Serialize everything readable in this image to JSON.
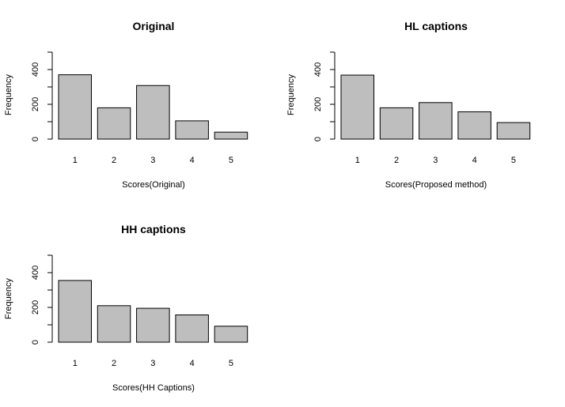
{
  "chart_data": [
    {
      "type": "bar",
      "title": "Original",
      "xlabel": "Scores(Original)",
      "ylabel": "Frequency",
      "categories": [
        "1",
        "2",
        "3",
        "4",
        "5"
      ],
      "values": [
        370,
        180,
        308,
        105,
        40
      ],
      "ylim": [
        0,
        500
      ],
      "yticks": [
        0,
        200,
        400
      ],
      "grid": false,
      "bar_color": "#bebebe"
    },
    {
      "type": "bar",
      "title": "HL captions",
      "xlabel": "Scores(Proposed method)",
      "ylabel": "Frequency",
      "categories": [
        "1",
        "2",
        "3",
        "4",
        "5"
      ],
      "values": [
        368,
        180,
        210,
        157,
        95
      ],
      "ylim": [
        0,
        500
      ],
      "yticks": [
        0,
        200,
        400
      ],
      "grid": false,
      "bar_color": "#bebebe"
    },
    {
      "type": "bar",
      "title": "HH captions",
      "xlabel": "Scores(HH Captions)",
      "ylabel": "Frequency",
      "categories": [
        "1",
        "2",
        "3",
        "4",
        "5"
      ],
      "values": [
        355,
        210,
        195,
        157,
        92
      ],
      "ylim": [
        0,
        500
      ],
      "yticks": [
        0,
        200,
        400
      ],
      "grid": false,
      "bar_color": "#bebebe"
    }
  ]
}
